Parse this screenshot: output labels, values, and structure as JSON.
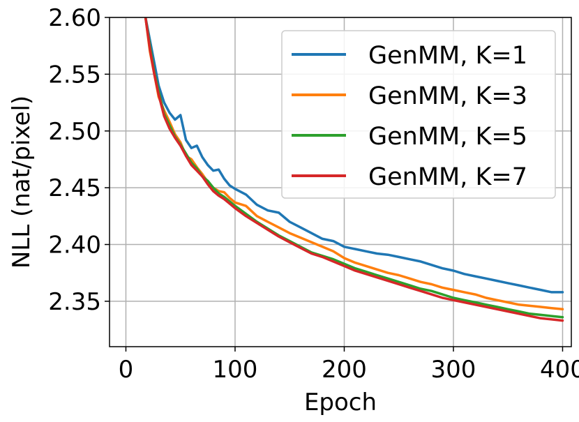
{
  "chart_data": {
    "type": "line",
    "title": "",
    "xlabel": "Epoch",
    "ylabel": "NLL (nat/pixel)",
    "xlim": [
      -15,
      408
    ],
    "ylim": [
      2.31,
      2.6
    ],
    "xticks": [
      0,
      100,
      200,
      300,
      400
    ],
    "xtick_labels": [
      "0",
      "100",
      "200",
      "300",
      "400"
    ],
    "yticks": [
      2.35,
      2.4,
      2.45,
      2.5,
      2.55,
      2.6
    ],
    "ytick_labels": [
      "2.35",
      "2.40",
      "2.45",
      "2.50",
      "2.55",
      "2.60"
    ],
    "grid": true,
    "legend_position": "top-right",
    "series": [
      {
        "name": "GenMM, K=1",
        "color": "#1f77b4",
        "x": [
          10,
          18,
          22,
          26,
          30,
          35,
          40,
          45,
          50,
          55,
          60,
          65,
          70,
          75,
          80,
          85,
          90,
          95,
          100,
          110,
          120,
          130,
          140,
          150,
          160,
          170,
          180,
          190,
          200,
          210,
          220,
          230,
          240,
          250,
          260,
          270,
          280,
          290,
          300,
          310,
          320,
          330,
          340,
          350,
          360,
          370,
          380,
          390,
          400
        ],
        "y": [
          2.7,
          2.6,
          2.58,
          2.56,
          2.54,
          2.525,
          2.516,
          2.51,
          2.514,
          2.492,
          2.485,
          2.487,
          2.477,
          2.47,
          2.465,
          2.466,
          2.458,
          2.452,
          2.449,
          2.444,
          2.435,
          2.43,
          2.428,
          2.42,
          2.415,
          2.41,
          2.405,
          2.403,
          2.398,
          2.396,
          2.394,
          2.392,
          2.391,
          2.389,
          2.387,
          2.385,
          2.382,
          2.379,
          2.377,
          2.374,
          2.372,
          2.37,
          2.368,
          2.366,
          2.364,
          2.362,
          2.36,
          2.358,
          2.358
        ]
      },
      {
        "name": "GenMM, K=3",
        "color": "#ff7f0e",
        "x": [
          10,
          18,
          22,
          26,
          30,
          35,
          40,
          45,
          50,
          55,
          60,
          65,
          70,
          75,
          80,
          85,
          90,
          95,
          100,
          110,
          120,
          130,
          140,
          150,
          160,
          170,
          180,
          190,
          200,
          210,
          220,
          230,
          240,
          250,
          260,
          270,
          280,
          290,
          300,
          310,
          320,
          330,
          340,
          350,
          360,
          370,
          380,
          390,
          400
        ],
        "y": [
          2.7,
          2.6,
          2.57,
          2.55,
          2.53,
          2.518,
          2.508,
          2.497,
          2.49,
          2.478,
          2.475,
          2.468,
          2.462,
          2.455,
          2.45,
          2.447,
          2.446,
          2.441,
          2.437,
          2.434,
          2.425,
          2.42,
          2.415,
          2.41,
          2.406,
          2.402,
          2.398,
          2.394,
          2.388,
          2.384,
          2.381,
          2.378,
          2.375,
          2.373,
          2.37,
          2.367,
          2.365,
          2.362,
          2.36,
          2.358,
          2.356,
          2.353,
          2.351,
          2.349,
          2.347,
          2.346,
          2.345,
          2.344,
          2.343
        ]
      },
      {
        "name": "GenMM, K=5",
        "color": "#2ca02c",
        "x": [
          10,
          18,
          22,
          26,
          30,
          35,
          40,
          45,
          50,
          55,
          60,
          65,
          70,
          75,
          80,
          85,
          90,
          95,
          100,
          110,
          120,
          130,
          140,
          150,
          160,
          170,
          180,
          190,
          200,
          210,
          220,
          230,
          240,
          250,
          260,
          270,
          280,
          290,
          300,
          310,
          320,
          330,
          340,
          350,
          360,
          370,
          380,
          390,
          400
        ],
        "y": [
          2.7,
          2.6,
          2.575,
          2.552,
          2.535,
          2.515,
          2.505,
          2.495,
          2.488,
          2.48,
          2.472,
          2.467,
          2.46,
          2.456,
          2.45,
          2.445,
          2.442,
          2.438,
          2.434,
          2.427,
          2.42,
          2.414,
          2.408,
          2.403,
          2.398,
          2.393,
          2.39,
          2.387,
          2.383,
          2.379,
          2.376,
          2.373,
          2.37,
          2.367,
          2.364,
          2.361,
          2.359,
          2.356,
          2.353,
          2.351,
          2.349,
          2.347,
          2.345,
          2.343,
          2.341,
          2.339,
          2.338,
          2.337,
          2.336
        ]
      },
      {
        "name": "GenMM, K=7",
        "color": "#d62728",
        "x": [
          10,
          18,
          22,
          26,
          30,
          35,
          40,
          45,
          50,
          55,
          60,
          65,
          70,
          75,
          80,
          85,
          90,
          95,
          100,
          110,
          120,
          130,
          140,
          150,
          160,
          170,
          180,
          190,
          200,
          210,
          220,
          230,
          240,
          250,
          260,
          270,
          280,
          290,
          300,
          310,
          320,
          330,
          340,
          350,
          360,
          370,
          380,
          390,
          400
        ],
        "y": [
          2.7,
          2.6,
          2.572,
          2.55,
          2.532,
          2.513,
          2.502,
          2.494,
          2.487,
          2.478,
          2.47,
          2.465,
          2.46,
          2.453,
          2.447,
          2.443,
          2.44,
          2.436,
          2.432,
          2.425,
          2.419,
          2.413,
          2.407,
          2.402,
          2.397,
          2.392,
          2.389,
          2.385,
          2.381,
          2.377,
          2.374,
          2.371,
          2.368,
          2.365,
          2.362,
          2.359,
          2.356,
          2.353,
          2.351,
          2.349,
          2.347,
          2.345,
          2.343,
          2.341,
          2.339,
          2.337,
          2.335,
          2.334,
          2.333
        ]
      }
    ]
  }
}
